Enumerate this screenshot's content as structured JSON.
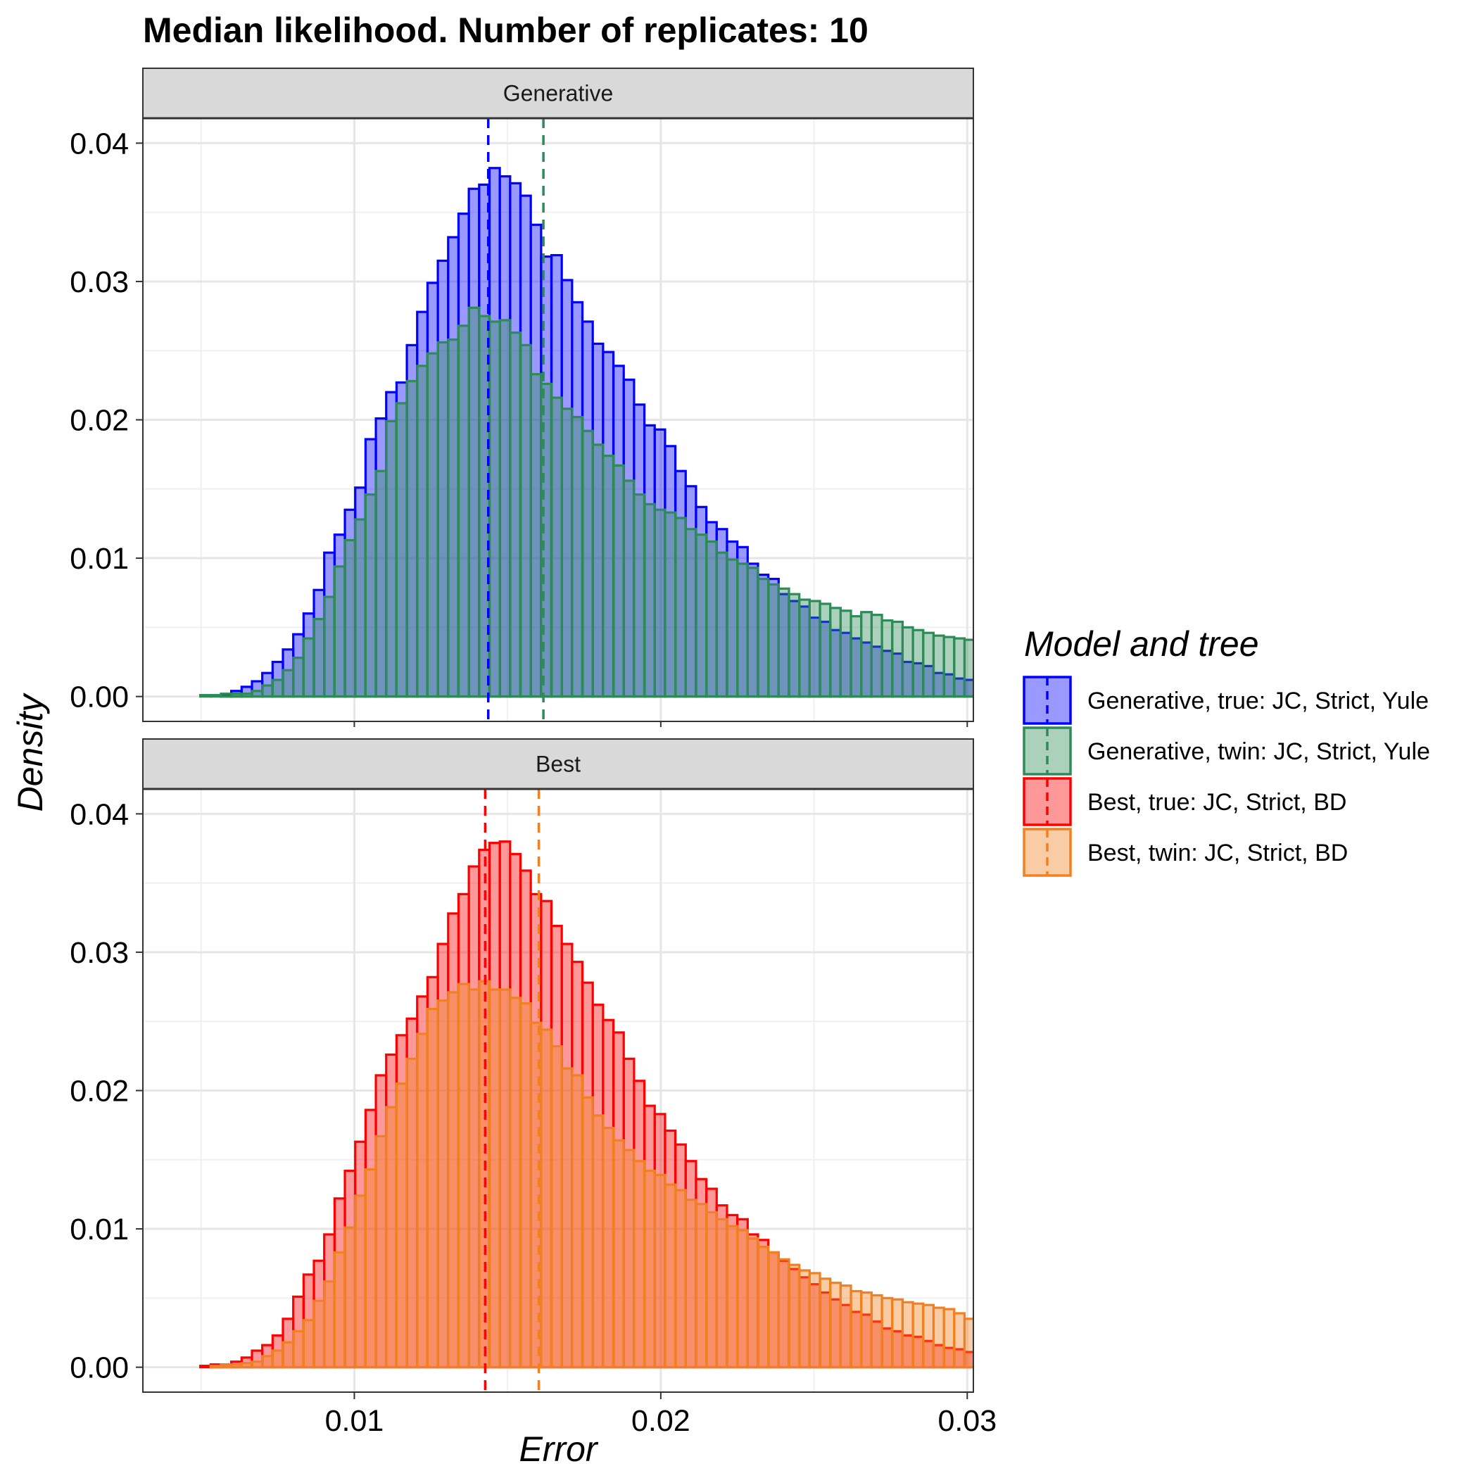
{
  "chart_data": {
    "type": "histogram",
    "title": "Median likelihood. Number of replicates:  10",
    "xlabel": "Error",
    "ylabel": "Density",
    "xlim": [
      0.0031,
      0.0302
    ],
    "ylim": [
      -0.0018,
      0.0418
    ],
    "x_ticks": [
      "0.01",
      "0.02",
      "0.03"
    ],
    "x_tick_values": [
      0.01,
      0.02,
      0.03
    ],
    "y_ticks": [
      "0.00",
      "0.01",
      "0.02",
      "0.03",
      "0.04"
    ],
    "y_tick_values": [
      0.0,
      0.01,
      0.02,
      0.03,
      0.04
    ],
    "grid": true,
    "bins": {
      "start": 0.0043,
      "width": 0.000337,
      "count": 77
    },
    "legend": {
      "title": "Model and tree",
      "position": "right",
      "entries": [
        {
          "label": "Generative, true: JC, Strict, Yule",
          "color": "#0000ff"
        },
        {
          "label": "Generative, twin: JC, Strict, Yule",
          "color": "#2e8b57"
        },
        {
          "label": "Best, true: JC, Strict, BD",
          "color": "#ff0000"
        },
        {
          "label": "Best, twin: JC, Strict, BD",
          "color": "#f08020"
        }
      ]
    },
    "panels": [
      {
        "strip": "Generative",
        "series": [
          {
            "color": "#0000ff",
            "fill_opacity": 0.4,
            "density": [
              0.0,
              0.0,
              0.0,
              0.0,
              0.0001,
              0.0004,
              0.0007,
              0.0011,
              0.0017,
              0.0025,
              0.0034,
              0.0045,
              0.006,
              0.0077,
              0.0104,
              0.0117,
              0.0135,
              0.0151,
              0.0186,
              0.0201,
              0.022,
              0.0227,
              0.0254,
              0.0278,
              0.0299,
              0.0315,
              0.0332,
              0.0349,
              0.0367,
              0.037,
              0.0382,
              0.0376,
              0.0371,
              0.0362,
              0.0341,
              0.0318,
              0.0319,
              0.0301,
              0.0285,
              0.0271,
              0.0255,
              0.0249,
              0.0239,
              0.0229,
              0.0211,
              0.0196,
              0.0193,
              0.0181,
              0.0163,
              0.0152,
              0.0137,
              0.0126,
              0.0121,
              0.0112,
              0.0108,
              0.0096,
              0.0088,
              0.0085,
              0.0074,
              0.0069,
              0.0065,
              0.0057,
              0.0054,
              0.0048,
              0.0046,
              0.0042,
              0.0039,
              0.0036,
              0.0033,
              0.0031,
              0.0025,
              0.0024,
              0.0022,
              0.0017,
              0.0016,
              0.0013,
              0.0012
            ],
            "median": 0.01437
          },
          {
            "color": "#2e8b57",
            "fill_opacity": 0.4,
            "density": [
              0.0,
              0.0,
              0.0001,
              0.0001,
              0.0002,
              0.0002,
              0.0002,
              0.0004,
              0.0008,
              0.0012,
              0.0019,
              0.0028,
              0.0042,
              0.0056,
              0.0072,
              0.0094,
              0.0113,
              0.0128,
              0.0146,
              0.0163,
              0.0199,
              0.0212,
              0.0228,
              0.0239,
              0.0248,
              0.0256,
              0.0258,
              0.0268,
              0.0281,
              0.0275,
              0.0271,
              0.0272,
              0.0263,
              0.0254,
              0.0233,
              0.0226,
              0.0216,
              0.0208,
              0.0202,
              0.0192,
              0.0182,
              0.0174,
              0.0167,
              0.0156,
              0.0146,
              0.0139,
              0.0135,
              0.0133,
              0.0129,
              0.0121,
              0.0117,
              0.0112,
              0.0104,
              0.0099,
              0.0096,
              0.0093,
              0.0085,
              0.0081,
              0.0078,
              0.0074,
              0.007,
              0.0069,
              0.0067,
              0.0064,
              0.0062,
              0.0058,
              0.0061,
              0.0059,
              0.0055,
              0.0054,
              0.005,
              0.0048,
              0.0046,
              0.0044,
              0.0043,
              0.0042,
              0.0041
            ],
            "median": 0.01617
          }
        ]
      },
      {
        "strip": "Best",
        "series": [
          {
            "color": "#ff0000",
            "fill_opacity": 0.4,
            "density": [
              0.0,
              0.0,
              0.0001,
              0.0002,
              0.0002,
              0.0004,
              0.0007,
              0.0012,
              0.0016,
              0.0023,
              0.0035,
              0.0051,
              0.0067,
              0.0077,
              0.0096,
              0.0122,
              0.0142,
              0.0163,
              0.0186,
              0.0211,
              0.0226,
              0.024,
              0.0252,
              0.0268,
              0.0282,
              0.0306,
              0.0328,
              0.0342,
              0.0362,
              0.0374,
              0.0379,
              0.038,
              0.0371,
              0.0359,
              0.0342,
              0.0337,
              0.0319,
              0.0306,
              0.0293,
              0.0278,
              0.0262,
              0.0251,
              0.0242,
              0.0223,
              0.0207,
              0.0189,
              0.0183,
              0.0171,
              0.0161,
              0.0149,
              0.0136,
              0.0129,
              0.0117,
              0.011,
              0.0107,
              0.0096,
              0.0092,
              0.0083,
              0.0077,
              0.0071,
              0.0065,
              0.006,
              0.0054,
              0.0049,
              0.0045,
              0.004,
              0.0038,
              0.0033,
              0.0028,
              0.0026,
              0.0023,
              0.0022,
              0.0019,
              0.0016,
              0.0014,
              0.0013,
              0.0011
            ],
            "median": 0.01427
          },
          {
            "color": "#f08020",
            "fill_opacity": 0.4,
            "density": [
              0.0,
              0.0,
              0.0,
              0.0001,
              0.0002,
              0.0002,
              0.0003,
              0.0004,
              0.0008,
              0.0012,
              0.0018,
              0.0026,
              0.0034,
              0.0048,
              0.0062,
              0.0083,
              0.0101,
              0.0124,
              0.0143,
              0.0167,
              0.0188,
              0.0205,
              0.0223,
              0.0241,
              0.0259,
              0.0265,
              0.0271,
              0.0277,
              0.0273,
              0.0279,
              0.0273,
              0.0273,
              0.0267,
              0.0263,
              0.0249,
              0.0244,
              0.0232,
              0.0216,
              0.0211,
              0.0195,
              0.0182,
              0.0173,
              0.0164,
              0.0157,
              0.0149,
              0.0142,
              0.0139,
              0.0132,
              0.0128,
              0.0121,
              0.0118,
              0.0112,
              0.0107,
              0.0102,
              0.0099,
              0.0093,
              0.0087,
              0.0083,
              0.0078,
              0.0074,
              0.007,
              0.0068,
              0.0064,
              0.0061,
              0.0059,
              0.0055,
              0.0054,
              0.0052,
              0.005,
              0.0049,
              0.0047,
              0.0046,
              0.0045,
              0.0043,
              0.0042,
              0.0039,
              0.0035
            ],
            "median": 0.01602
          }
        ]
      }
    ]
  }
}
